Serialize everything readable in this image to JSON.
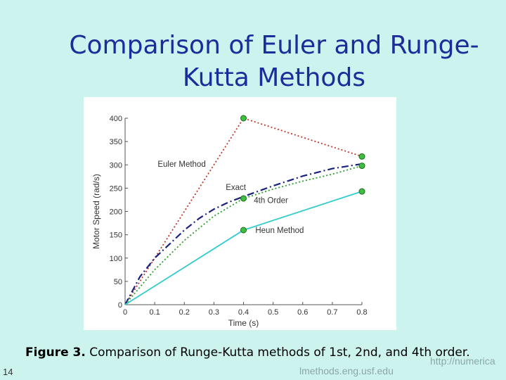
{
  "slide": {
    "title_line1": "Comparison of Euler and Runge-",
    "title_line2": "Kutta Methods",
    "caption_bold": "Figure 3.",
    "caption_text": " Comparison of Runge-Kutta methods of 1st, 2nd, and 4th order.",
    "slide_number": "14",
    "footer_url": "lmethods.eng.usf.edu",
    "footer_url_overlap": "http://numerica"
  },
  "chart_data": {
    "type": "line",
    "xlabel": "Time (s)",
    "ylabel": "Motor Speed (rad/s)",
    "xlim": [
      0,
      0.8
    ],
    "ylim": [
      0,
      400
    ],
    "xticks": [
      "0",
      "0.1",
      "0.2",
      "0.3",
      "0.4",
      "0.5",
      "0.6",
      "0.7",
      "0.8"
    ],
    "yticks": [
      "0",
      "50",
      "100",
      "150",
      "200",
      "250",
      "300",
      "350",
      "400"
    ],
    "grid": false,
    "series": [
      {
        "name": "Euler Method",
        "color": "#c0392b",
        "dash": "dotted",
        "points": [
          [
            0,
            0
          ],
          [
            0.4,
            400
          ],
          [
            0.8,
            318
          ]
        ],
        "markers": [
          [
            0.4,
            400
          ],
          [
            0.8,
            318
          ]
        ]
      },
      {
        "name": "Exact",
        "color": "#1a237e",
        "dash": "dashdot",
        "points": [
          [
            0,
            0
          ],
          [
            0.05,
            60
          ],
          [
            0.1,
            100
          ],
          [
            0.15,
            130
          ],
          [
            0.2,
            160
          ],
          [
            0.25,
            185
          ],
          [
            0.3,
            205
          ],
          [
            0.35,
            220
          ],
          [
            0.4,
            232
          ],
          [
            0.5,
            255
          ],
          [
            0.6,
            276
          ],
          [
            0.7,
            292
          ],
          [
            0.8,
            302
          ]
        ],
        "markers": []
      },
      {
        "name": "4th Order",
        "color": "#2e9e2e",
        "dash": "dotted",
        "points": [
          [
            0,
            0
          ],
          [
            0.1,
            75
          ],
          [
            0.2,
            138
          ],
          [
            0.3,
            190
          ],
          [
            0.4,
            228
          ],
          [
            0.5,
            248
          ],
          [
            0.6,
            265
          ],
          [
            0.7,
            280
          ],
          [
            0.8,
            298
          ]
        ],
        "markers": [
          [
            0.4,
            228
          ],
          [
            0.8,
            298
          ]
        ]
      },
      {
        "name": "Heun Method",
        "color": "#33cccc",
        "dash": "solid",
        "points": [
          [
            0,
            0
          ],
          [
            0.4,
            160
          ],
          [
            0.8,
            243
          ]
        ],
        "markers": [
          [
            0.4,
            160
          ],
          [
            0.8,
            243
          ]
        ]
      }
    ],
    "annotations": [
      {
        "text": "Euler Method",
        "x": 0.11,
        "y": 296
      },
      {
        "text": "Exact",
        "x": 0.34,
        "y": 246
      },
      {
        "text": "4th Order",
        "x": 0.435,
        "y": 218
      },
      {
        "text": "Heun Method",
        "x": 0.44,
        "y": 154
      }
    ]
  }
}
